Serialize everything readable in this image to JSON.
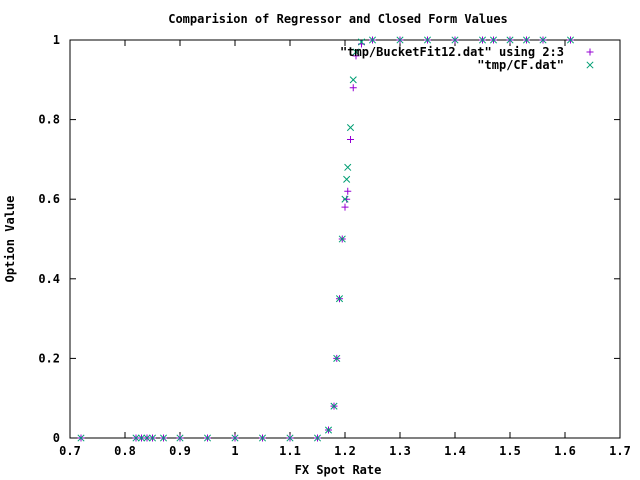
{
  "chart_data": {
    "type": "scatter",
    "title": "Comparision of Regressor and Closed Form Values",
    "xlabel": "FX Spot Rate",
    "ylabel": "Option Value",
    "xlim": [
      0.7,
      1.7
    ],
    "ylim": [
      0,
      1
    ],
    "xticks": [
      "0.7",
      "0.8",
      "0.9",
      "1",
      "1.1",
      "1.2",
      "1.3",
      "1.4",
      "1.5",
      "1.6",
      "1.7"
    ],
    "yticks": [
      "0",
      "0.2",
      "0.4",
      "0.6",
      "0.8",
      "1"
    ],
    "grid": false,
    "legend_position": "top-right",
    "colors": {
      "series1": "#9400d3",
      "series2": "#009e73",
      "overlap": "#3b3b8f"
    },
    "series": [
      {
        "name": "\"tmp/BucketFit12.dat\" using 2:3",
        "marker": "plus",
        "x": [
          0.72,
          0.82,
          0.83,
          0.84,
          0.85,
          0.87,
          0.9,
          0.95,
          1.0,
          1.05,
          1.1,
          1.15,
          1.17,
          1.18,
          1.185,
          1.19,
          1.195,
          1.2,
          1.203,
          1.205,
          1.21,
          1.215,
          1.22,
          1.23,
          1.25,
          1.3,
          1.35,
          1.4,
          1.45,
          1.47,
          1.5,
          1.53,
          1.56,
          1.61
        ],
        "y": [
          0,
          0,
          0,
          0,
          0,
          0,
          0,
          0,
          0,
          0,
          0,
          0,
          0.02,
          0.08,
          0.2,
          0.35,
          0.5,
          0.58,
          0.6,
          0.62,
          0.75,
          0.88,
          0.96,
          0.99,
          1,
          1,
          1,
          1,
          1,
          1,
          1,
          1,
          1,
          1
        ]
      },
      {
        "name": "\"tmp/CF.dat\"",
        "marker": "cross",
        "x": [
          0.72,
          0.82,
          0.83,
          0.84,
          0.85,
          0.87,
          0.9,
          0.95,
          1.0,
          1.05,
          1.1,
          1.15,
          1.17,
          1.18,
          1.185,
          1.19,
          1.195,
          1.2,
          1.203,
          1.205,
          1.21,
          1.215,
          1.22,
          1.23,
          1.25,
          1.3,
          1.35,
          1.4,
          1.45,
          1.47,
          1.5,
          1.53,
          1.56,
          1.61
        ],
        "y": [
          0,
          0,
          0,
          0,
          0,
          0,
          0,
          0,
          0,
          0,
          0,
          0,
          0.02,
          0.08,
          0.2,
          0.35,
          0.5,
          0.6,
          0.65,
          0.68,
          0.78,
          0.9,
          0.97,
          0.995,
          1,
          1,
          1,
          1,
          1,
          1,
          1,
          1,
          1,
          1
        ]
      }
    ]
  }
}
